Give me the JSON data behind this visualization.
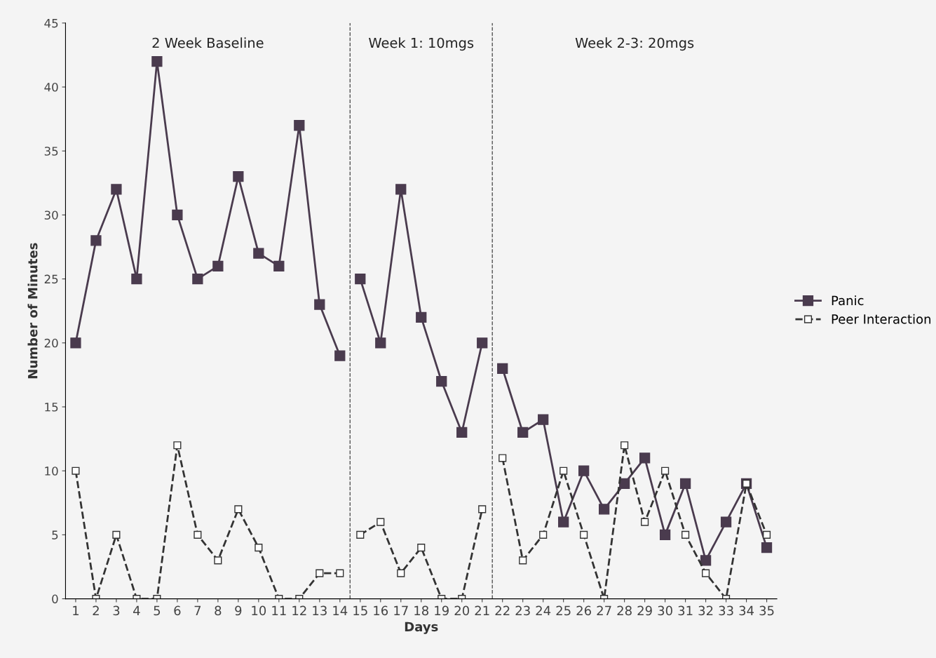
{
  "chart_data": {
    "type": "line",
    "xlabel": "Days",
    "ylabel": "Number of Minutes",
    "xlim": [
      0.5,
      35.5
    ],
    "xticks": [
      1,
      2,
      3,
      4,
      5,
      6,
      7,
      8,
      9,
      10,
      11,
      12,
      13,
      14,
      15,
      16,
      17,
      18,
      19,
      20,
      21,
      22,
      23,
      24,
      25,
      26,
      27,
      28,
      29,
      30,
      31,
      32,
      33,
      34,
      35
    ],
    "ylim": [
      0,
      45
    ],
    "yticks": [
      0,
      5,
      10,
      15,
      20,
      25,
      30,
      35,
      40,
      45
    ],
    "grid": false,
    "legend": "right",
    "series": [
      {
        "name": "Panic",
        "color": "#4a3b4e",
        "marker": "square",
        "line_style": "solid",
        "x": [
          1,
          2,
          3,
          4,
          5,
          6,
          7,
          8,
          9,
          10,
          11,
          12,
          13,
          14
        ],
        "values": [
          20,
          28,
          32,
          25,
          42,
          30,
          25,
          26,
          33,
          27,
          26,
          37,
          23,
          19
        ]
      },
      {
        "color": "#4a3b4e",
        "marker": "square",
        "line_style": "solid",
        "x": [
          15,
          16,
          17,
          18,
          19,
          20,
          21
        ],
        "values": [
          25,
          20,
          32,
          22,
          17,
          13,
          20
        ]
      },
      {
        "color": "#4a3b4e",
        "marker": "square",
        "line_style": "solid",
        "x": [
          22,
          23,
          24,
          25,
          26,
          27,
          28,
          29,
          30,
          31,
          32,
          33,
          34,
          35
        ],
        "values": [
          18,
          13,
          14,
          6,
          10,
          7,
          9,
          11,
          5,
          9,
          3,
          6,
          9,
          4
        ]
      },
      {
        "name": "Peer Interaction",
        "color": "#333333",
        "marker": "square_open",
        "line_style": "dashed",
        "x": [
          1,
          2,
          3,
          4,
          5,
          6,
          7,
          8,
          9,
          10,
          11,
          12,
          13,
          14
        ],
        "values": [
          10,
          0,
          5,
          0,
          0,
          12,
          5,
          3,
          7,
          4,
          0,
          0,
          2,
          2
        ]
      },
      {
        "color": "#333333",
        "marker": "square_open",
        "line_style": "dashed",
        "x": [
          15,
          16,
          17,
          18,
          19,
          20,
          21
        ],
        "values": [
          5,
          6,
          2,
          4,
          0,
          0,
          7
        ]
      },
      {
        "color": "#333333",
        "marker": "square_open",
        "line_style": "dashed",
        "x": [
          22,
          23,
          24,
          25,
          26,
          27,
          28,
          29,
          30,
          31,
          32,
          33,
          34,
          35
        ],
        "values": [
          11,
          3,
          5,
          10,
          5,
          0,
          12,
          6,
          10,
          5,
          2,
          0,
          9,
          5
        ]
      }
    ],
    "ref_lines": [
      {
        "axis": "x",
        "value": 14.5,
        "color": "#555555",
        "line_style": "dashed"
      },
      {
        "axis": "x",
        "value": 21.5,
        "color": "#555555",
        "line_style": "dashed"
      }
    ],
    "annotations": [
      "2 Week Baseline",
      "Week 1: 10mgs",
      "Week 2-3: 20mgs"
    ]
  }
}
